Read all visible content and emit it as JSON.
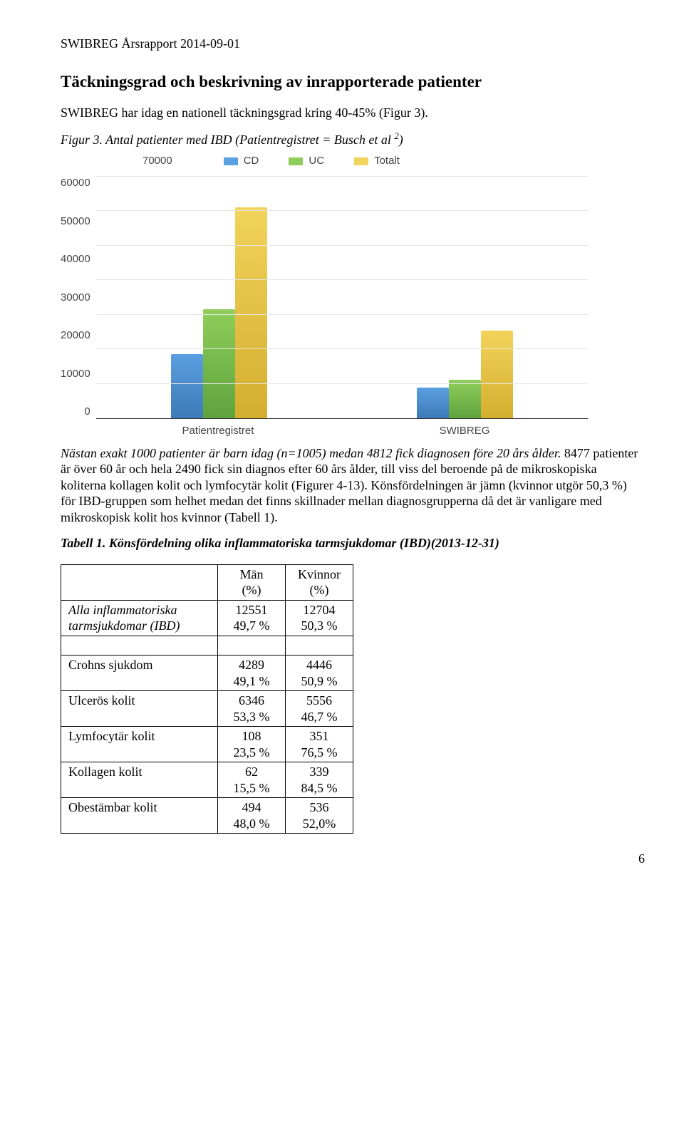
{
  "header": "SWIBREG Årsrapport 2014-09-01",
  "sectionTitle": "Täckningsgrad och beskrivning av inrapporterade patienter",
  "intro": "SWIBREG har idag en nationell täckningsgrad kring 40-45% (Figur 3).",
  "figCaptionPrefix": "Figur 3. Antal patienter med IBD (Patientregistret = Busch et al ",
  "figCaptionSup": "2",
  "figCaptionSuffix": ")",
  "chart": {
    "ymax": 70000,
    "yticks": [
      "70000",
      "60000",
      "50000",
      "40000",
      "30000",
      "20000",
      "10000",
      "0"
    ],
    "legend": [
      {
        "label": "CD",
        "color1": "#5a9fe0",
        "color2": "#3d7ab8"
      },
      {
        "label": "UC",
        "color1": "#8fce5a",
        "color2": "#5fa33e"
      },
      {
        "label": "Totalt",
        "color1": "#f2d35b",
        "color2": "#d4ae2e"
      }
    ],
    "categories": [
      "Patientregistret",
      "SWIBREG"
    ],
    "series": [
      {
        "cd": 18500,
        "uc": 31500,
        "tot": 61000
      },
      {
        "cd": 8800,
        "uc": 11200,
        "tot": 25300
      }
    ]
  },
  "para2": "Nästan exakt 1000 patienter är barn idag (n=1005) medan 4812 fick diagnosen före 20 års ålder. 8477 patienter är över 60 år och hela 2490 fick sin diagnos efter 60 års ålder, till viss del beroende på de mikroskopiska koliterna kollagen kolit och lymfocytär kolit (Figurer 4-13). Könsfördelningen är jämn (kvinnor utgör 50,3 %) för IBD-gruppen som helhet medan det finns skillnader mellan diagnosgrupperna då det är vanligare med mikroskopisk kolit hos kvinnor (Tabell 1).",
  "tabCaption": "Tabell 1. Könsfördelning olika inflammatoriska tarmsjukdomar (IBD)(2013-12-31)",
  "table": {
    "headers": [
      "",
      "Män (%)",
      "Kvinnor (%)"
    ],
    "block1": [
      {
        "label": "Alla inflammatoriska tarmsjukdomar (IBD)",
        "m1": "12551",
        "m2": "49,7 %",
        "k1": "12704",
        "k2": "50,3 %",
        "italic": true
      }
    ],
    "block2": [
      {
        "label": "Crohns sjukdom",
        "m1": "4289",
        "m2": "49,1 %",
        "k1": "4446",
        "k2": "50,9 %"
      },
      {
        "label": "Ulcerös kolit",
        "m1": "6346",
        "m2": "53,3 %",
        "k1": "5556",
        "k2": "46,7 %"
      },
      {
        "label": "Lymfocytär kolit",
        "m1": "108",
        "m2": "23,5 %",
        "k1": "351",
        "k2": "76,5 %"
      },
      {
        "label": "Kollagen kolit",
        "m1": "62",
        "m2": "15,5 %",
        "k1": "339",
        "k2": "84,5 %"
      },
      {
        "label": "Obestämbar kolit",
        "m1": "494",
        "m2": "48,0 %",
        "k1": "536",
        "k2": "52,0%"
      }
    ]
  },
  "pageNum": "6"
}
